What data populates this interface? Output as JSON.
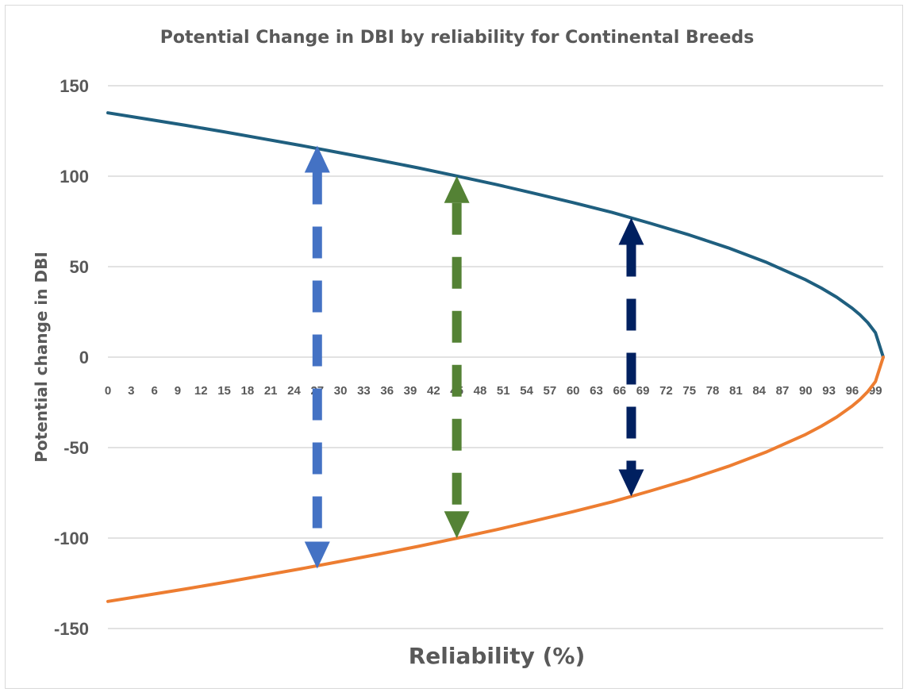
{
  "chart_data": {
    "type": "line",
    "title": "Potential Change in DBI by reliability for Continental Breeds",
    "xlabel": "Reliability (%)",
    "ylabel": "Potential change in DBI",
    "ylim": [
      -150,
      150
    ],
    "y_ticks": [
      "150",
      "100",
      "50",
      "0",
      "-50",
      "-100",
      "-150"
    ],
    "x_tick_labels": [
      "0",
      "3",
      "6",
      "9",
      "12",
      "15",
      "18",
      "21",
      "24",
      "27",
      "30",
      "33",
      "36",
      "39",
      "42",
      "45",
      "48",
      "51",
      "54",
      "57",
      "60",
      "63",
      "66",
      "69",
      "72",
      "75",
      "78",
      "81",
      "84",
      "87",
      "90",
      "93",
      "96",
      "99"
    ],
    "grid": "horizontal",
    "legend": "none",
    "x": [
      0,
      5,
      10,
      15,
      20,
      25,
      30,
      35,
      40,
      45,
      50,
      55,
      60,
      65,
      70,
      75,
      80,
      85,
      90,
      92,
      94,
      96,
      97,
      98,
      99,
      100
    ],
    "series": [
      {
        "color": "#1f5f7f",
        "values": [
          135,
          131.6,
          128.1,
          124.5,
          120.7,
          116.9,
          112.9,
          108.8,
          104.6,
          100.1,
          95.5,
          90.5,
          85.4,
          80,
          73.9,
          67.5,
          60.4,
          52.3,
          42.7,
          38.2,
          33.1,
          27,
          23.4,
          19.1,
          13.5,
          0
        ]
      },
      {
        "color": "#ed7d31",
        "values": [
          -135,
          -131.6,
          -128.1,
          -124.5,
          -120.7,
          -116.9,
          -112.9,
          -108.8,
          -104.6,
          -100.1,
          -95.5,
          -90.5,
          -85.4,
          -80,
          -73.9,
          -67.5,
          -60.4,
          -52.3,
          -42.7,
          -38.2,
          -33.1,
          -27,
          -23.4,
          -19.1,
          -13.5,
          0
        ]
      }
    ],
    "annotations": [
      {
        "kind": "dashed-double-arrow",
        "color": "#4472c4",
        "x": 27,
        "from": 116.9,
        "to": -116.9
      },
      {
        "kind": "dashed-double-arrow",
        "color": "#548235",
        "x": 45,
        "from": 100.1,
        "to": -100.1
      },
      {
        "kind": "dashed-double-arrow",
        "color": "#002060",
        "x": 67.5,
        "from": 77,
        "to": -77
      }
    ]
  }
}
